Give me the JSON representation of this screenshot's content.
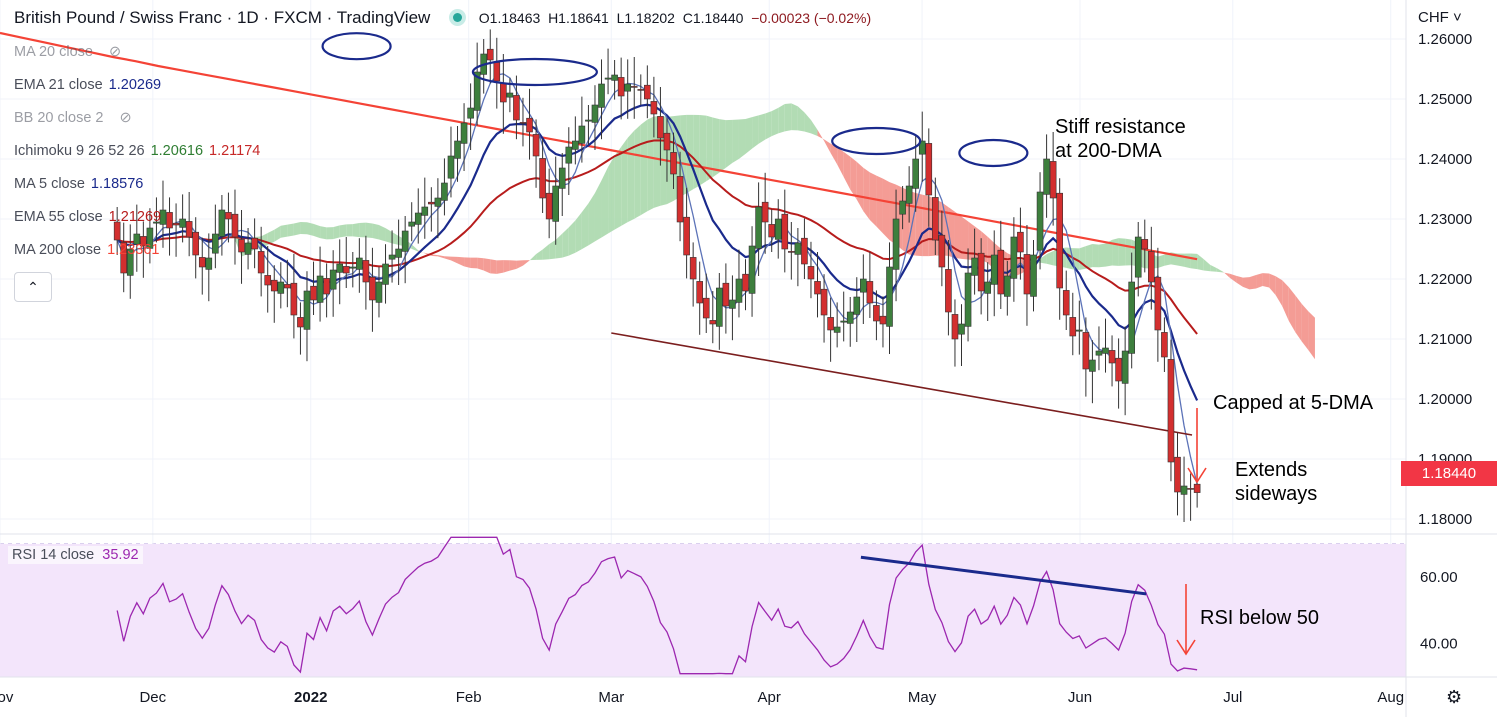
{
  "header": {
    "title": "British Pound / Swiss Franc · 1D · FXCM · TradingView",
    "open": "O1.18463",
    "high": "H1.18641",
    "low": "L1.18202",
    "close": "C1.18440",
    "change": "−0.00023 (−0.02%)"
  },
  "currency": "CHF",
  "last_price": "1.18440",
  "legend": [
    {
      "name": "MA 20 close",
      "value": "",
      "color": "#9598a1",
      "hidden": true
    },
    {
      "name": "EMA 21 close",
      "value": "1.20269",
      "color": "#1a2a8c",
      "hidden": false
    },
    {
      "name": "BB 20 close 2",
      "value": "",
      "color": "#9598a1",
      "hidden": true
    },
    {
      "name": "Ichimoku 9 26 52 26",
      "value": "1.20616",
      "value2": "1.21174",
      "color": "#2e7d32",
      "color2": "#c62828",
      "hidden": false
    },
    {
      "name": "MA 5 close",
      "value": "1.18576",
      "color": "#1a2a8c",
      "hidden": false
    },
    {
      "name": "EMA 55 close",
      "value": "1.21269",
      "color": "#b71c1c",
      "hidden": false
    },
    {
      "name": "MA 200 close",
      "value": "1.23361",
      "color": "#f44336",
      "hidden": false
    }
  ],
  "rsi_label": {
    "name": "RSI 14 close",
    "value": "35.92"
  },
  "annotations": {
    "resistance_line1": "Stiff resistance",
    "resistance_line2": "at 200-DMA",
    "capped": "Capped at 5-DMA",
    "extends_line1": "Extends",
    "extends_line2": "sideways",
    "rsi_note": "RSI below 50"
  },
  "colors": {
    "up": "#3d7f3d",
    "down": "#d32f2f",
    "ma200": "#f44336",
    "ema55": "#b71c1c",
    "ema21": "#1a2a8c",
    "ma5": "#5c73b8",
    "cloud_red": "#f28b82",
    "cloud_green": "#a5d6a7",
    "rsi": "#9c27b0",
    "rsi_band": "#f3e5fb",
    "trend": "#7b1e1e",
    "rsi_div": "#1a2a8c",
    "circle": "#1a2a8c"
  },
  "chart_data": {
    "type": "candlestick",
    "title": "British Pound / Swiss Franc · 1D · FXCM",
    "y_axis": {
      "ticks": [
        1.26,
        1.25,
        1.24,
        1.23,
        1.22,
        1.21,
        1.2,
        1.19,
        1.18
      ],
      "tick_labels": [
        "1.26000",
        "1.25000",
        "1.24000",
        "1.23000",
        "1.22000",
        "1.21000",
        "1.20000",
        "1.19000",
        "1.18000"
      ]
    },
    "x_axis": {
      "ticks": [
        "Nov",
        "Dec",
        "2022",
        "Feb",
        "Mar",
        "Apr",
        "May",
        "Jun",
        "Jul",
        "Aug"
      ],
      "tick_x": [
        "2021-11-01",
        "2021-12-01",
        "2022-01-01",
        "2022-02-01",
        "2022-03-01",
        "2022-04-01",
        "2022-05-01",
        "2022-06-01",
        "2022-07-01",
        "2022-08-01"
      ]
    },
    "x_range": [
      "2021-11-01",
      "2022-08-04"
    ],
    "y_range": [
      1.1775,
      1.2665
    ],
    "rsi_axis": {
      "ticks": [
        60,
        40
      ],
      "tick_labels": [
        "60.00",
        "40.00"
      ],
      "range": [
        30,
        73
      ],
      "band": [
        30,
        70
      ]
    },
    "candle_close": [
      1.2265,
      1.221,
      1.225,
      1.2275,
      1.2255,
      1.2285,
      1.2295,
      1.2315,
      1.2285,
      1.229,
      1.23,
      1.227,
      1.224,
      1.222,
      1.2235,
      1.2275,
      1.2315,
      1.23,
      1.227,
      1.2245,
      1.226,
      1.225,
      1.221,
      1.219,
      1.218,
      1.2195,
      1.2185,
      1.214,
      1.212,
      1.218,
      1.2165,
      1.2205,
      1.2175,
      1.2215,
      1.2225,
      1.221,
      1.222,
      1.2235,
      1.2195,
      1.2165,
      1.2195,
      1.2225,
      1.224,
      1.225,
      1.228,
      1.2295,
      1.231,
      1.232,
      1.2325,
      1.2335,
      1.236,
      1.2405,
      1.243,
      1.246,
      1.2485,
      1.2545,
      1.2575,
      1.2565,
      1.253,
      1.2495,
      1.251,
      1.2465,
      1.246,
      1.2445,
      1.2405,
      1.2335,
      1.23,
      1.2355,
      1.2385,
      1.242,
      1.243,
      1.2455,
      1.2465,
      1.249,
      1.2525,
      1.2535,
      1.254,
      1.2505,
      1.2525,
      1.252,
      1.2515,
      1.25,
      1.2475,
      1.2435,
      1.2415,
      1.2375,
      1.2295,
      1.224,
      1.22,
      1.216,
      1.2135,
      1.2125,
      1.2185,
      1.2155,
      1.2165,
      1.22,
      1.218,
      1.2255,
      1.232,
      1.2295,
      1.227,
      1.23,
      1.225,
      1.2245,
      1.226,
      1.2225,
      1.22,
      1.2175,
      1.214,
      1.2115,
      1.212,
      1.213,
      1.2145,
      1.217,
      1.22,
      1.216,
      1.213,
      1.2125,
      1.222,
      1.23,
      1.233,
      1.2355,
      1.24,
      1.243,
      1.234,
      1.2265,
      1.222,
      1.2145,
      1.21,
      1.2125,
      1.221,
      1.2235,
      1.218,
      1.2195,
      1.224,
      1.2175,
      1.2205,
      1.227,
      1.2245,
      1.2175,
      1.224,
      1.2345,
      1.24,
      1.2335,
      1.2185,
      1.214,
      1.2105,
      1.2115,
      1.205,
      1.2065,
      1.208,
      1.2085,
      1.206,
      1.203,
      1.208,
      1.2195,
      1.227,
      1.225,
      1.2195,
      1.2115,
      1.207,
      1.1895,
      1.1845,
      1.1855,
      1.185,
      1.1844
    ],
    "ma200": [
      1.261,
      1.2602,
      1.2594,
      1.2586,
      1.2578,
      1.257,
      1.2563,
      1.2555,
      1.2548,
      1.2541,
      1.2534,
      1.2527,
      1.252,
      1.2513,
      1.2506,
      1.2499,
      1.2492,
      1.2485,
      1.2478,
      1.2471,
      1.2464,
      1.2457,
      1.245,
      1.2443,
      1.2436,
      1.2429,
      1.2422,
      1.2415,
      1.2408,
      1.2401,
      1.2394,
      1.2387,
      1.238,
      1.2373,
      1.2366,
      1.2359,
      1.2352,
      1.2345,
      1.2338,
      1.2331,
      1.2324,
      1.2317,
      1.231,
      1.2303,
      1.2296,
      1.2289,
      1.2282,
      1.2275,
      1.2268,
      1.2261,
      1.2254,
      1.2247,
      1.224,
      1.2233
    ],
    "ema55_endpoint": 1.21269,
    "ema21_endpoint": 1.20269,
    "ma5_endpoint": 1.18576,
    "trendline": {
      "from": [
        "2022-03-01",
        1.211
      ],
      "to": [
        "2022-06-23",
        1.194
      ]
    },
    "rsi_divergence": {
      "from": [
        "2022-04-19",
        66
      ],
      "to": [
        "2022-06-14",
        55
      ]
    }
  }
}
